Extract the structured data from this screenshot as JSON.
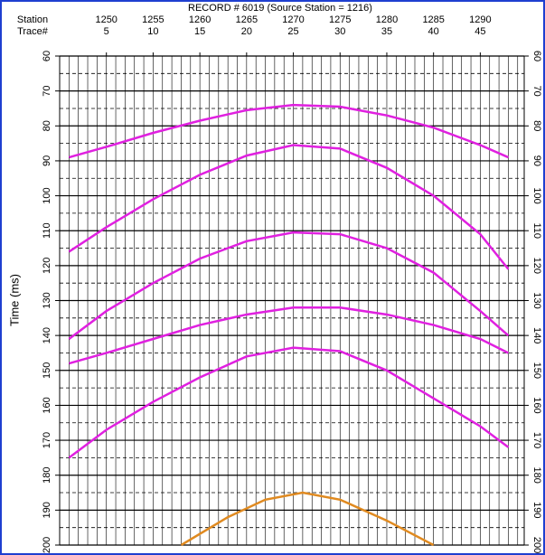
{
  "chart_data": {
    "type": "line",
    "title": "RECORD # 6019 (Source Station = 1216)",
    "y_label": "Time (ms)",
    "station_row_label": "Station",
    "trace_row_label": "Trace#",
    "xticks": [
      5,
      10,
      15,
      20,
      25,
      30,
      35,
      40,
      45
    ],
    "station_labels": [
      1250,
      1255,
      1260,
      1265,
      1270,
      1275,
      1280,
      1285,
      1290
    ],
    "xlim": [
      0,
      49.7
    ],
    "ylim": [
      60,
      200
    ],
    "yticks": [
      60,
      70,
      80,
      90,
      100,
      110,
      120,
      130,
      140,
      150,
      160,
      170,
      180,
      190,
      200
    ],
    "grid": true,
    "series": [
      {
        "color": "#e020e0",
        "x": [
          1,
          5,
          10,
          15,
          20,
          25,
          30,
          35,
          40,
          45,
          48
        ],
        "values": [
          89,
          86,
          82,
          78.5,
          75.5,
          74,
          74.5,
          77,
          80.5,
          85.5,
          89
        ]
      },
      {
        "color": "#e020e0",
        "x": [
          1,
          5,
          10,
          15,
          20,
          25,
          30,
          35,
          40,
          45,
          48
        ],
        "values": [
          116,
          109,
          101,
          94,
          88.5,
          85.5,
          86.5,
          92,
          100,
          111,
          121
        ]
      },
      {
        "color": "#e020e0",
        "x": [
          1,
          5,
          10,
          15,
          20,
          25,
          30,
          35,
          40,
          45,
          48
        ],
        "values": [
          141,
          133,
          125,
          118,
          113,
          110.5,
          111,
          115,
          122,
          133,
          140
        ]
      },
      {
        "color": "#e020e0",
        "x": [
          1,
          5,
          10,
          15,
          20,
          25,
          30,
          35,
          40,
          45,
          48
        ],
        "values": [
          148,
          145,
          141,
          137,
          134,
          132,
          132,
          134,
          137,
          141,
          145
        ]
      },
      {
        "color": "#e020e0",
        "x": [
          1,
          5,
          10,
          15,
          20,
          25,
          30,
          35,
          40,
          45,
          48
        ],
        "values": [
          175,
          167,
          159,
          152,
          146,
          143.5,
          144.5,
          150,
          158,
          166,
          172
        ]
      },
      {
        "color": "#e08a20",
        "x": [
          13,
          18,
          22,
          26,
          30,
          35,
          40
        ],
        "values": [
          200,
          192,
          187,
          185,
          187,
          193,
          200
        ]
      }
    ]
  }
}
